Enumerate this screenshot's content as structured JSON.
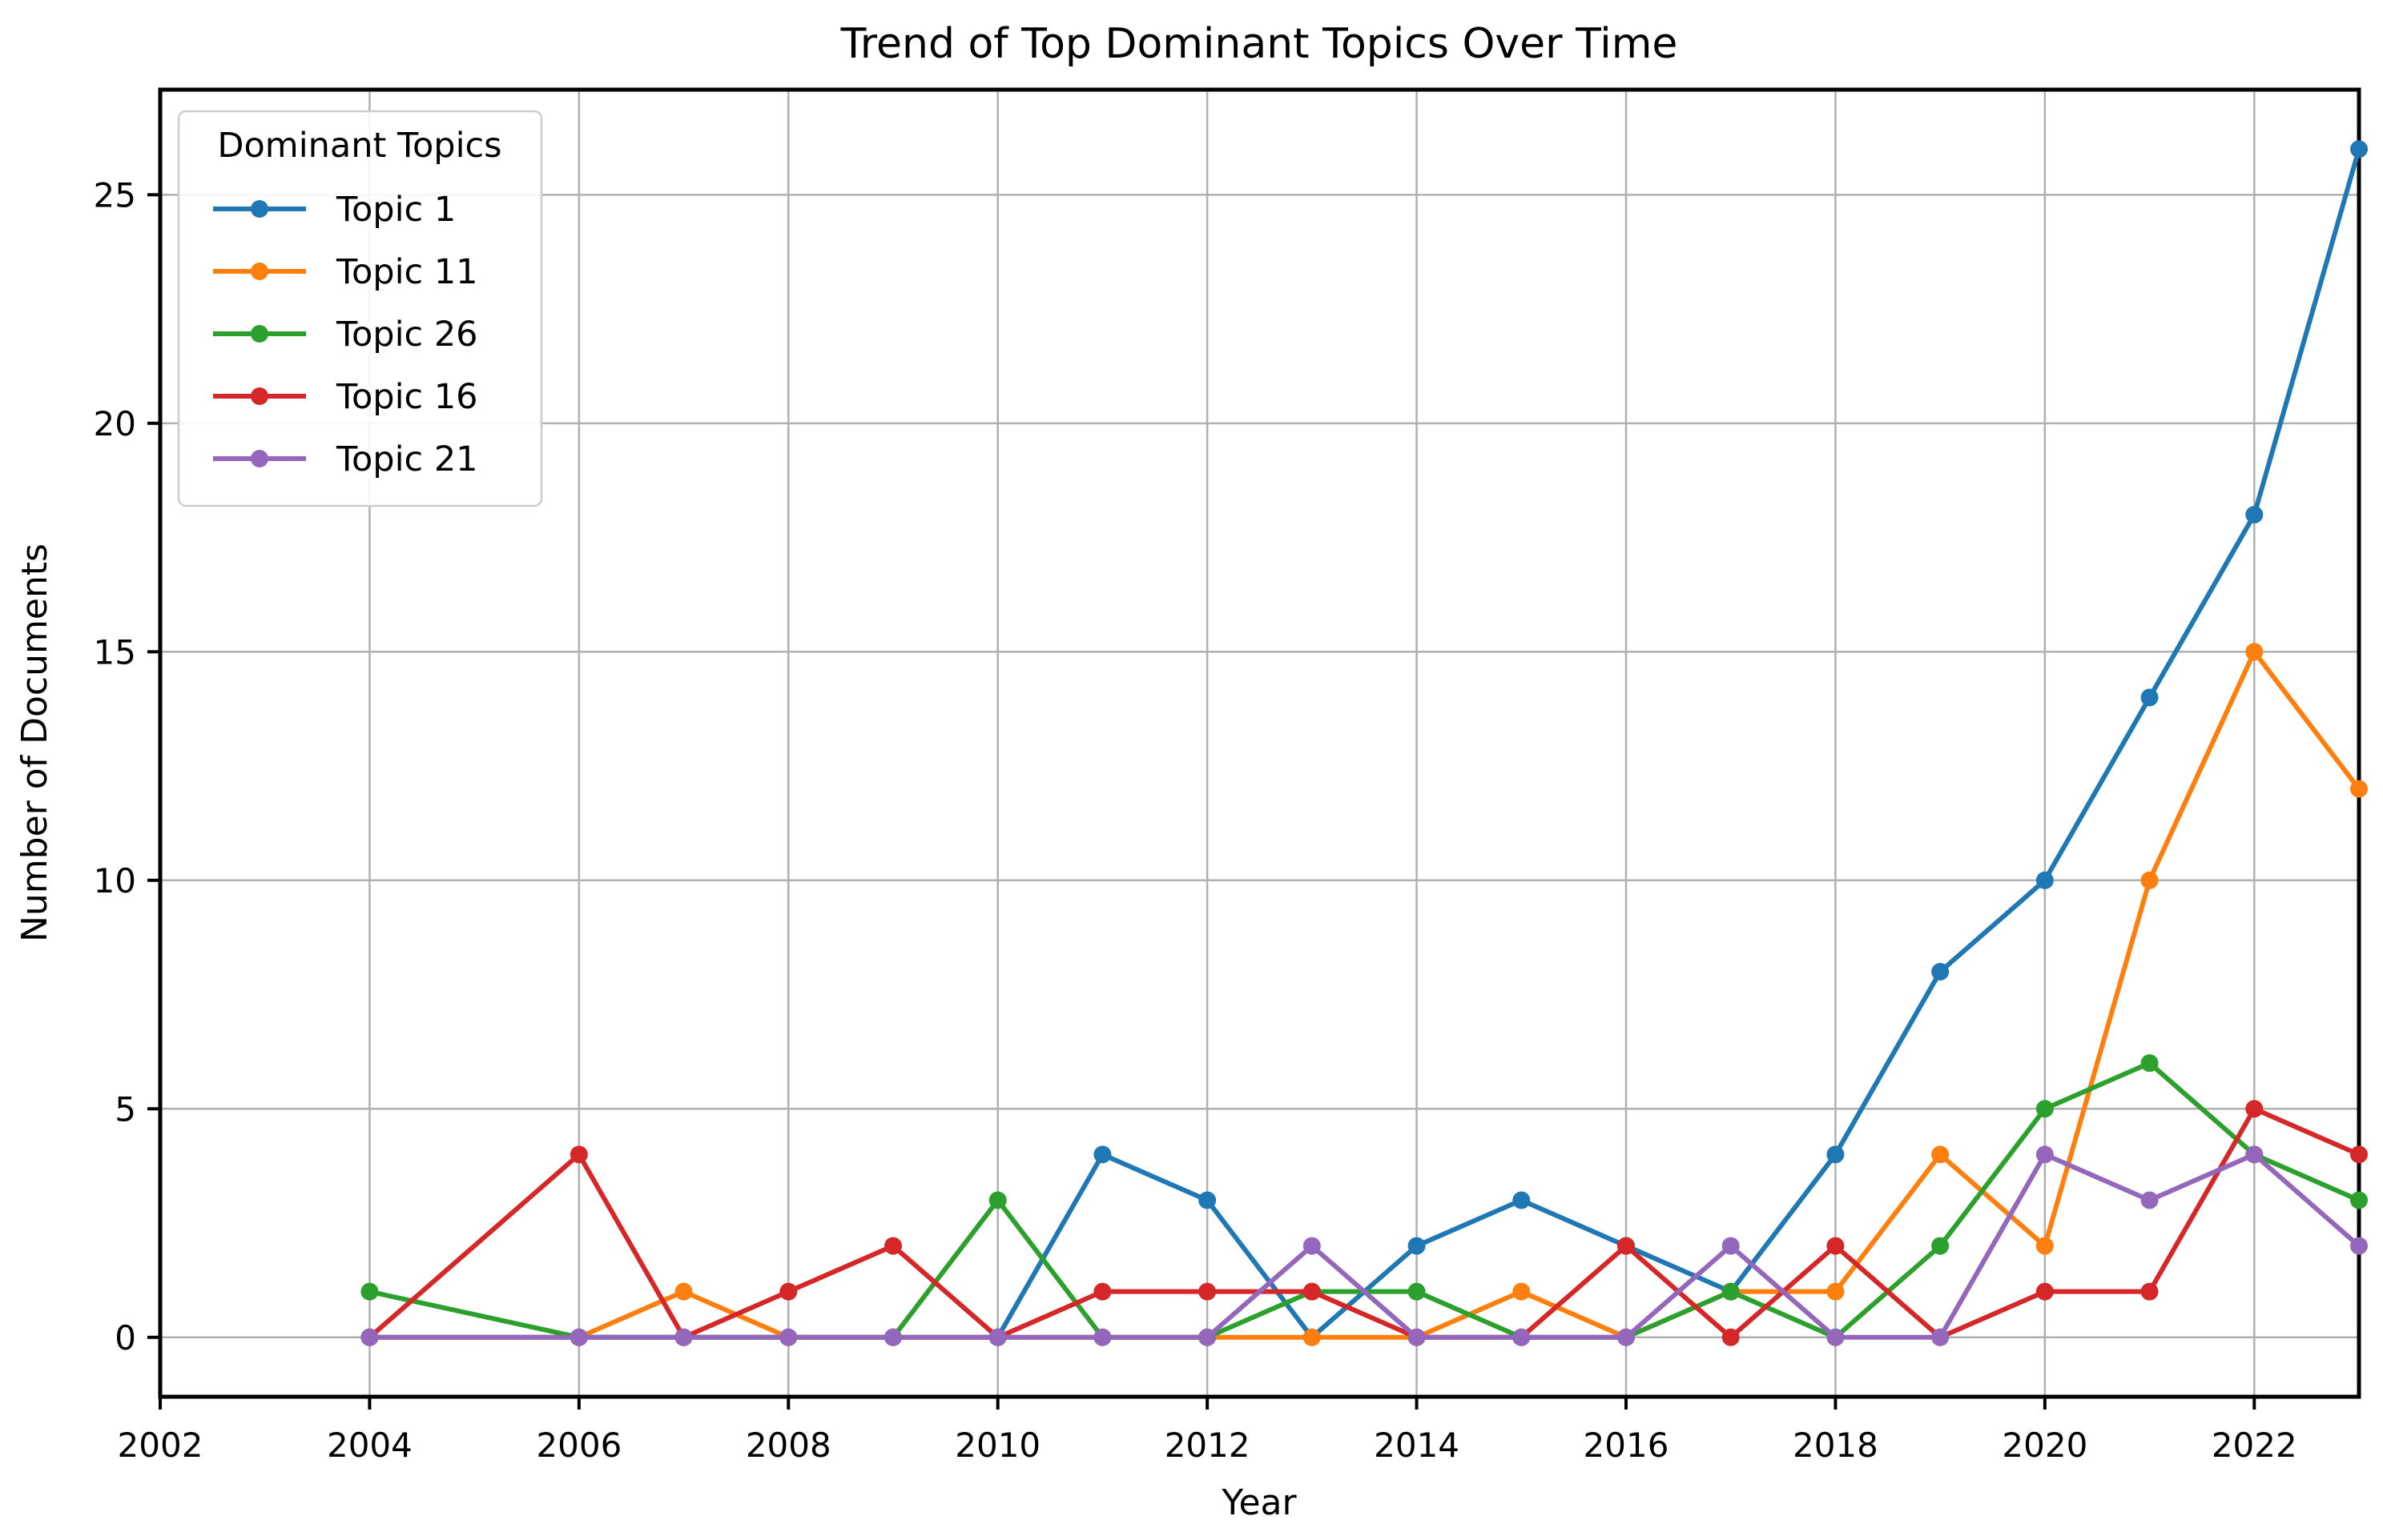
{
  "chart_data": {
    "type": "line",
    "title": "Trend of Top Dominant Topics Over Time",
    "xlabel": "Year",
    "ylabel": "Number of Documents",
    "legend_title": "Dominant Topics",
    "legend_position": "upper left",
    "grid": true,
    "xlim": [
      2002,
      2023
    ],
    "ylim": [
      -1.3,
      27.3
    ],
    "x_ticks": [
      2002,
      2004,
      2006,
      2008,
      2010,
      2012,
      2014,
      2016,
      2018,
      2020,
      2022
    ],
    "y_ticks": [
      0,
      5,
      10,
      15,
      20,
      25
    ],
    "x": [
      2004,
      2006,
      2007,
      2008,
      2009,
      2010,
      2011,
      2012,
      2013,
      2014,
      2015,
      2016,
      2017,
      2018,
      2019,
      2020,
      2021,
      2022,
      2023
    ],
    "series": [
      {
        "name": "Topic 1",
        "color": "#1f77b4",
        "values": [
          0,
          0,
          0,
          0,
          0,
          0,
          4,
          3,
          0,
          2,
          3,
          2,
          1,
          4,
          8,
          10,
          14,
          18,
          26
        ]
      },
      {
        "name": "Topic 11",
        "color": "#ff7f0e",
        "values": [
          0,
          0,
          1,
          0,
          0,
          0,
          0,
          0,
          0,
          0,
          1,
          0,
          1,
          1,
          4,
          2,
          10,
          15,
          12
        ]
      },
      {
        "name": "Topic 26",
        "color": "#2ca02c",
        "values": [
          1,
          0,
          0,
          0,
          0,
          3,
          0,
          0,
          1,
          1,
          0,
          0,
          1,
          0,
          2,
          5,
          6,
          4,
          3
        ]
      },
      {
        "name": "Topic 16",
        "color": "#d62728",
        "values": [
          0,
          4,
          0,
          1,
          2,
          0,
          1,
          1,
          1,
          0,
          0,
          2,
          0,
          2,
          0,
          1,
          1,
          5,
          4
        ]
      },
      {
        "name": "Topic 21",
        "color": "#9467bd",
        "values": [
          0,
          0,
          0,
          0,
          0,
          0,
          0,
          0,
          2,
          0,
          0,
          0,
          2,
          0,
          0,
          4,
          3,
          4,
          2
        ]
      }
    ],
    "style": {
      "grid_color": "#b0b0b0",
      "spine_color": "#000000",
      "background": "#ffffff",
      "line_width": 6,
      "marker_radius": 11
    }
  }
}
